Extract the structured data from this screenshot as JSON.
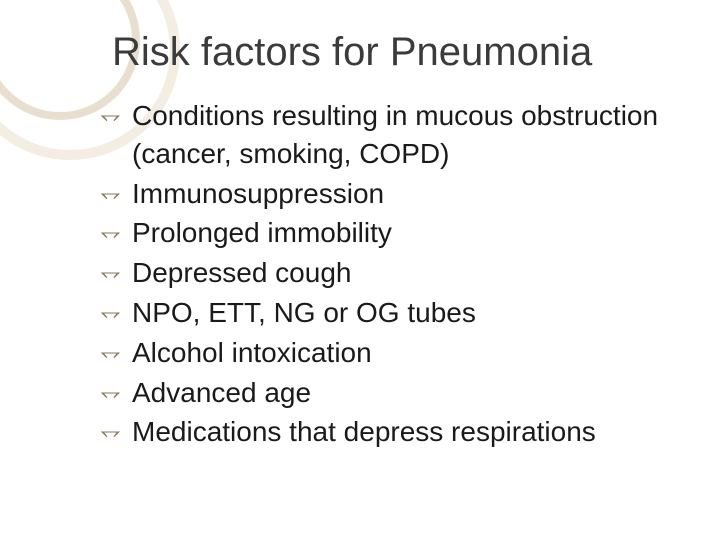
{
  "slide": {
    "title": "Risk factors for Pneumonia",
    "bullets": [
      "Conditions resulting in mucous obstruction (cancer, smoking, COPD)",
      "Immunosuppression",
      "Prolonged immobility",
      "Depressed cough",
      "NPO, ETT, NG or OG tubes",
      "Alcohol intoxication",
      "Advanced age",
      "Medications that depress respirations"
    ],
    "bullet_glyph": "⥐",
    "colors": {
      "title": "#3b3b3b",
      "text": "#1a1a1a",
      "bullet_glyph": "#8a7a5a",
      "arc_outer": "#f3ede2",
      "arc_inner": "#e9dfce",
      "background": "#ffffff"
    },
    "typography": {
      "title_fontsize": 40,
      "body_fontsize": 28,
      "font_family": "Arial"
    }
  }
}
